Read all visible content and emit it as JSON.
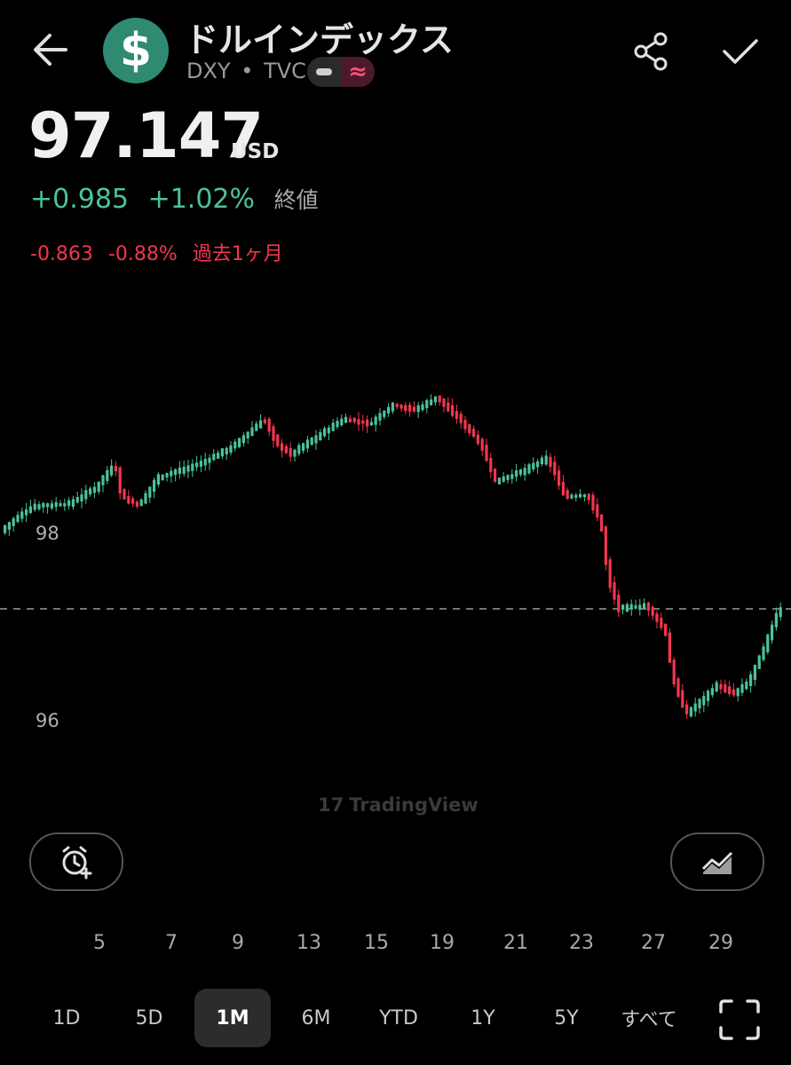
{
  "header": {
    "title": "ドルインデックス",
    "ticker": "DXY",
    "separator": "•",
    "exchange": "TVC",
    "logo_glyph": "$",
    "logo_color": "#2e8b72",
    "pill_glyph": "≈"
  },
  "quote": {
    "price": "97.147",
    "currency": "USD",
    "change_abs": "+0.985",
    "change_pct": "+1.02%",
    "close_label": "終値",
    "month_change_abs": "-0.863",
    "month_change_pct": "-0.88%",
    "month_label": "過去1ヶ月",
    "up_color": "#4cc29b",
    "down_color": "#f2364e"
  },
  "chart_data": {
    "type": "candlestick",
    "y_ticks": [
      "98",
      "96"
    ],
    "x_ticks": [
      "5",
      "7",
      "9",
      "13",
      "15",
      "19",
      "21",
      "23",
      "27",
      "29"
    ],
    "current_price_line": 97.147,
    "watermark": "TradingView",
    "up_color": "#4cc29b",
    "down_color": "#f2364e"
  },
  "ranges": {
    "items": [
      "1D",
      "5D",
      "1M",
      "6M",
      "YTD",
      "1Y",
      "5Y",
      "すべて"
    ],
    "active": "1M"
  },
  "icons": {
    "back": "back-arrow-icon",
    "share": "share-icon",
    "check": "check-icon",
    "alarm": "add-alert-icon",
    "compare": "compare-chart-icon",
    "fullscreen": "fullscreen-icon"
  }
}
